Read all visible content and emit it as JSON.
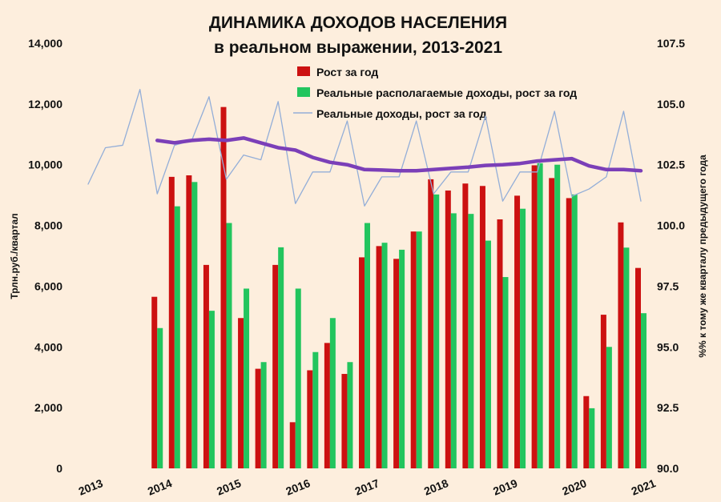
{
  "chart_data": {
    "type": "bar",
    "title_line1": "ДИНАМИКА ДОХОДОВ НАСЕЛЕНИЯ",
    "title_line2": "в реальном выражении, 2013-2021",
    "ylabel_left": "Трлн.руб./квартал",
    "ylabel_right": "%% к тому же кварталу предыдущего года",
    "ylim_left": [
      0,
      14000
    ],
    "ylim_right": [
      90.0,
      107.5
    ],
    "left_ticks": [
      "0",
      "2,000",
      "4,000",
      "6,000",
      "8,000",
      "10,000",
      "12,000",
      "14,000"
    ],
    "right_ticks": [
      "90.0",
      "92.5",
      "95.0",
      "97.5",
      "100.0",
      "102.5",
      "105.0",
      "107.5"
    ],
    "x_tick_labels": [
      "2013",
      "2014",
      "2015",
      "2016",
      "2017",
      "2018",
      "2019",
      "2020",
      "2021"
    ],
    "grid": false,
    "legend_position": "top-center",
    "colors": {
      "red_bar": "#cc1111",
      "green_bar": "#22c55e",
      "thin_line": "#93aed8",
      "thick_line": "#7b3fb8",
      "background": "#fdeedd"
    },
    "series": [
      {
        "name": "Рост за год",
        "kind": "bar",
        "color": "#cc1111",
        "values": [
          null,
          null,
          null,
          null,
          5650,
          9600,
          9650,
          6700,
          11900,
          4950,
          3280,
          6700,
          1520,
          3230,
          4130,
          3110,
          6950,
          7320,
          6900,
          7800,
          9520,
          9150,
          9380,
          9300,
          8200,
          8980,
          9980,
          9560,
          8900,
          2380,
          5060,
          8100,
          6600
        ]
      },
      {
        "name": "Реальные располагаемые доходы, рост за год",
        "kind": "bar",
        "color": "#22c55e",
        "values": [
          null,
          null,
          null,
          null,
          4620,
          8630,
          9430,
          5190,
          8080,
          5920,
          3500,
          7280,
          5920,
          3830,
          4950,
          3500,
          8080,
          7430,
          7200,
          7800,
          9020,
          8400,
          8380,
          7500,
          6300,
          8550,
          10050,
          10000,
          9020,
          1980,
          4000,
          7270,
          5110
        ]
      },
      {
        "name": "Реальные доходы, рост за год",
        "kind": "line",
        "axis": "right",
        "color": "#93aed8",
        "values": [
          101.7,
          103.2,
          103.3,
          105.6,
          101.3,
          103.3,
          103.5,
          105.3,
          101.9,
          102.9,
          102.7,
          105.1,
          100.9,
          102.2,
          102.2,
          104.3,
          100.8,
          102.0,
          102.0,
          104.3,
          101.3,
          102.2,
          102.2,
          104.5,
          101.0,
          102.2,
          102.2,
          104.7,
          101.2,
          101.5,
          102.0,
          104.7,
          101.0
        ]
      },
      {
        "name": "",
        "kind": "line",
        "axis": "right",
        "color": "#7b3fb8",
        "values": [
          null,
          null,
          null,
          null,
          103.5,
          103.4,
          103.5,
          103.55,
          103.5,
          103.6,
          103.4,
          103.2,
          103.1,
          102.8,
          102.6,
          102.5,
          102.3,
          102.28,
          102.25,
          102.25,
          102.3,
          102.35,
          102.4,
          102.47,
          102.5,
          102.55,
          102.65,
          102.7,
          102.75,
          102.45,
          102.3,
          102.3,
          102.25
        ]
      }
    ]
  }
}
